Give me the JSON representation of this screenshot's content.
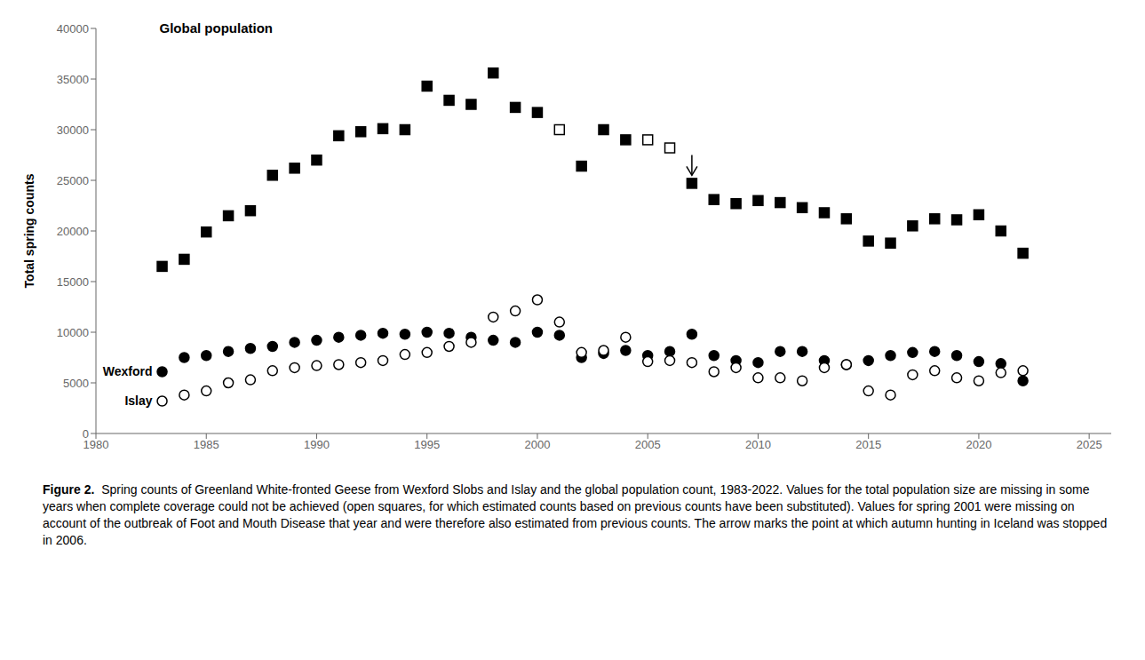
{
  "chart_data": {
    "type": "scatter",
    "ylabel": "Total spring counts",
    "xlim": [
      1980,
      2026
    ],
    "ylim": [
      0,
      40000
    ],
    "xticks": [
      1980,
      1985,
      1990,
      1995,
      2000,
      2005,
      2010,
      2015,
      2020,
      2025
    ],
    "yticks": [
      0,
      5000,
      10000,
      15000,
      20000,
      25000,
      30000,
      35000,
      40000
    ],
    "grid": false,
    "series": [
      {
        "name": "Global population",
        "marker": "square",
        "color": "#000000",
        "x": [
          1983,
          1984,
          1985,
          1986,
          1987,
          1988,
          1989,
          1990,
          1991,
          1992,
          1993,
          1994,
          1995,
          1996,
          1997,
          1998,
          1999,
          2000,
          2002,
          2003,
          2004,
          2007,
          2008,
          2009,
          2010,
          2011,
          2012,
          2013,
          2014,
          2015,
          2016,
          2017,
          2018,
          2019,
          2020,
          2021,
          2022
        ],
        "values": [
          16500,
          17200,
          19900,
          21500,
          22000,
          25500,
          26200,
          27000,
          29400,
          29800,
          30100,
          30000,
          34300,
          32900,
          32500,
          35600,
          32200,
          31700,
          26400,
          30000,
          29000,
          24700,
          23100,
          22700,
          23000,
          22800,
          22300,
          21800,
          21200,
          19000,
          18800,
          20500,
          21200,
          21100,
          21600,
          20000,
          17800
        ]
      },
      {
        "marker": "open_square",
        "color": "#000000",
        "x": [
          2001,
          2005,
          2006
        ],
        "values": [
          30000,
          29000,
          28200
        ]
      },
      {
        "name": "Wexford",
        "marker": "circle",
        "color": "#000000",
        "x": [
          1983,
          1984,
          1985,
          1986,
          1987,
          1988,
          1989,
          1990,
          1991,
          1992,
          1993,
          1994,
          1995,
          1996,
          1997,
          1998,
          1999,
          2000,
          2001,
          2002,
          2003,
          2004,
          2005,
          2006,
          2007,
          2008,
          2009,
          2010,
          2011,
          2012,
          2013,
          2014,
          2015,
          2016,
          2017,
          2018,
          2019,
          2020,
          2021,
          2022
        ],
        "values": [
          6100,
          7500,
          7700,
          8100,
          8400,
          8600,
          9000,
          9200,
          9500,
          9700,
          9900,
          9800,
          10000,
          9900,
          9500,
          9200,
          9000,
          10000,
          9700,
          7500,
          7900,
          8200,
          7700,
          8100,
          9800,
          7700,
          7200,
          7000,
          8100,
          8100,
          7200,
          6800,
          7200,
          7700,
          8000,
          8100,
          7700,
          7100,
          6900,
          5200
        ]
      },
      {
        "name": "Islay",
        "marker": "open_circle",
        "color": "#000000",
        "x": [
          1983,
          1984,
          1985,
          1986,
          1987,
          1988,
          1989,
          1990,
          1991,
          1992,
          1993,
          1994,
          1995,
          1996,
          1997,
          1998,
          1999,
          2000,
          2001,
          2002,
          2003,
          2004,
          2005,
          2006,
          2007,
          2008,
          2009,
          2010,
          2011,
          2012,
          2013,
          2014,
          2015,
          2016,
          2017,
          2018,
          2019,
          2020,
          2021,
          2022
        ],
        "values": [
          3200,
          3800,
          4200,
          5000,
          5300,
          6200,
          6500,
          6700,
          6800,
          7000,
          7200,
          7800,
          8000,
          8600,
          9000,
          11500,
          12100,
          13200,
          11000,
          8000,
          8200,
          9500,
          7100,
          7200,
          7000,
          6100,
          6500,
          5500,
          5500,
          5200,
          6500,
          6800,
          4200,
          3800,
          5800,
          6200,
          5500,
          5200,
          6000,
          6200
        ]
      }
    ],
    "arrow": {
      "x": 2007,
      "y_start": 27500,
      "y_end": 25500
    },
    "caption_bold": "Figure 2.",
    "caption": "  Spring counts of Greenland White-fronted Geese from Wexford Slobs and Islay and the global population count, 1983-2022. Values for the total population size are missing in some years when complete coverage could not be achieved (open squares, for which estimated counts based on previous counts have been substituted). Values for spring 2001 were missing on account of the outbreak of Foot and Mouth Disease that year and were therefore also estimated from previous counts. The arrow marks the point at which autumn hunting in Iceland was stopped in 2006."
  }
}
